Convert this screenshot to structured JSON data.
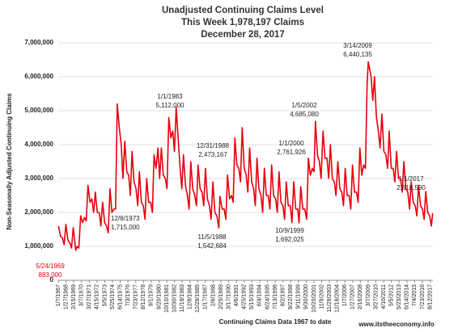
{
  "chart_data": {
    "type": "line",
    "title": "Unadjusted Continuing Claims Level",
    "subtitle": "This Week 1,978,197 Claims",
    "date": "December 28, 2017",
    "y_label": "Non-Seasonally Adjusted Continuing Claims",
    "x_label": "Continuing Claims Data 1967 to date",
    "source": "www.itstheeconomy.info",
    "grid": true,
    "xlim": [
      0,
      2660
    ],
    "xticks": [
      {
        "value": 0,
        "label": "1/7/1967"
      },
      {
        "value": 55,
        "label": "1/27/1968"
      },
      {
        "value": 110,
        "label": "2/15/1969"
      },
      {
        "value": 165,
        "label": "3/7/1970"
      },
      {
        "value": 220,
        "label": "3/27/1971"
      },
      {
        "value": 275,
        "label": "4/15/1972"
      },
      {
        "value": 330,
        "label": "5/5/1973"
      },
      {
        "value": 385,
        "label": "5/25/1974"
      },
      {
        "value": 440,
        "label": "6/14/1975"
      },
      {
        "value": 495,
        "label": "7/3/1976"
      },
      {
        "value": 550,
        "label": "7/23/1977"
      },
      {
        "value": 605,
        "label": "8/12/1978"
      },
      {
        "value": 660,
        "label": "9/1/1979"
      },
      {
        "value": 715,
        "label": "9/20/1980"
      },
      {
        "value": 770,
        "label": "10/10/1981"
      },
      {
        "value": 825,
        "label": "10/30/1982"
      },
      {
        "value": 880,
        "label": "11/19/1983"
      },
      {
        "value": 935,
        "label": "12/8/1984"
      },
      {
        "value": 990,
        "label": "12/28/1985"
      },
      {
        "value": 1045,
        "label": "1/17/1987"
      },
      {
        "value": 1100,
        "label": "2/6/1988"
      },
      {
        "value": 1155,
        "label": "2/25/1989"
      },
      {
        "value": 1210,
        "label": "3/17/1990"
      },
      {
        "value": 1265,
        "label": "4/6/1991"
      },
      {
        "value": 1320,
        "label": "4/25/1992"
      },
      {
        "value": 1375,
        "label": "5/15/1993"
      },
      {
        "value": 1430,
        "label": "6/4/1994"
      },
      {
        "value": 1485,
        "label": "6/24/1995"
      },
      {
        "value": 1540,
        "label": "7/13/1996"
      },
      {
        "value": 1595,
        "label": "8/2/1997"
      },
      {
        "value": 1650,
        "label": "8/22/1998"
      },
      {
        "value": 1705,
        "label": "9/11/1999"
      },
      {
        "value": 1760,
        "label": "9/30/2000"
      },
      {
        "value": 1815,
        "label": "10/20/2001"
      },
      {
        "value": 1870,
        "label": "11/9/2002"
      },
      {
        "value": 1925,
        "label": "11/29/2003"
      },
      {
        "value": 1980,
        "label": "12/18/2004"
      },
      {
        "value": 2035,
        "label": "1/7/2006"
      },
      {
        "value": 2090,
        "label": "1/27/2007"
      },
      {
        "value": 2145,
        "label": "2/16/2008"
      },
      {
        "value": 2200,
        "label": "3/7/2009"
      },
      {
        "value": 2255,
        "label": "3/27/2010"
      },
      {
        "value": 2310,
        "label": "4/16/2011"
      },
      {
        "value": 2365,
        "label": "5/5/2012"
      },
      {
        "value": 2420,
        "label": "5/25/2013"
      },
      {
        "value": 2475,
        "label": "6/14/2014"
      },
      {
        "value": 2530,
        "label": "7/4/2015"
      },
      {
        "value": 2585,
        "label": "7/23/2016"
      },
      {
        "value": 2640,
        "label": "8/12/2017"
      }
    ],
    "ylim": [
      0,
      7000000
    ],
    "yticks": [
      0,
      {
        "value": 1000000,
        "label": "1,000,000"
      },
      {
        "value": 2000000,
        "label": "2,000,000"
      },
      {
        "value": 3000000,
        "label": "3,000,000"
      },
      {
        "value": 4000000,
        "label": "4,000,000"
      },
      {
        "value": 5000000,
        "label": "5,000,000"
      },
      {
        "value": 6000000,
        "label": "6,000,000"
      },
      {
        "value": 7000000,
        "label": "7,000,000"
      }
    ],
    "series": [
      {
        "color": "#e8000b",
        "x": [
          2,
          16,
          30,
          42,
          54,
          68,
          82,
          94,
          106,
          124,
          134,
          146,
          159,
          173,
          187,
          199,
          211,
          225,
          239,
          251,
          263,
          277,
          291,
          303,
          315,
          329,
          343,
          355,
          367,
          381,
          395,
          407,
          419,
          433,
          447,
          459,
          472,
          486,
          500,
          512,
          524,
          538,
          552,
          564,
          576,
          590,
          604,
          616,
          628,
          642,
          656,
          668,
          680,
          694,
          708,
          720,
          732,
          746,
          760,
          772,
          785,
          799,
          813,
          825,
          837,
          851,
          865,
          877,
          889,
          903,
          917,
          929,
          941,
          955,
          969,
          981,
          993,
          1007,
          1021,
          1033,
          1045,
          1059,
          1073,
          1085,
          1098,
          1112,
          1126,
          1140,
          1148,
          1164,
          1178,
          1190,
          1202,
          1216,
          1230,
          1242,
          1254,
          1268,
          1282,
          1294,
          1306,
          1320,
          1334,
          1346,
          1359,
          1373,
          1387,
          1399,
          1411,
          1425,
          1439,
          1451,
          1463,
          1477,
          1491,
          1503,
          1515,
          1529,
          1543,
          1555,
          1567,
          1581,
          1595,
          1607,
          1619,
          1633,
          1647,
          1659,
          1672,
          1686,
          1700,
          1710,
          1722,
          1736,
          1750,
          1764,
          1776,
          1790,
          1804,
          1816,
          1826,
          1840,
          1854,
          1866,
          1880,
          1894,
          1908,
          1920,
          1932,
          1946,
          1960,
          1972,
          1985,
          1999,
          2013,
          2025,
          2037,
          2051,
          2065,
          2077,
          2089,
          2103,
          2117,
          2129,
          2141,
          2155,
          2169,
          2181,
          2193,
          2201,
          2221,
          2233,
          2245,
          2259,
          2273,
          2285,
          2298,
          2312,
          2326,
          2338,
          2350,
          2364,
          2378,
          2390,
          2402,
          2416,
          2430,
          2442,
          2454,
          2468,
          2482,
          2494,
          2506,
          2520,
          2534,
          2546,
          2558,
          2572,
          2586,
          2598,
          2609,
          2623,
          2637,
          2649,
          2658
        ],
        "values": [
          1600000,
          1300000,
          1250000,
          1050000,
          1650000,
          1200000,
          1100000,
          950000,
          1550000,
          883000,
          1000000,
          950000,
          1900000,
          1700000,
          1850000,
          1750000,
          2800000,
          2300000,
          2400000,
          2000000,
          2600000,
          2000000,
          2000000,
          1600000,
          2300000,
          1700000,
          1600000,
          1400000,
          2700000,
          2000000,
          2100000,
          2100000,
          5200000,
          4500000,
          4000000,
          3000000,
          4100000,
          3200000,
          3100000,
          2500000,
          3800000,
          2900000,
          2700000,
          2200000,
          3200000,
          2300000,
          2200000,
          1800000,
          3000000,
          2300000,
          2300000,
          2000000,
          3700000,
          3300000,
          3900000,
          3000000,
          3900000,
          3100000,
          3000000,
          2700000,
          4800000,
          4200000,
          4400000,
          3800000,
          5112000,
          4200000,
          3300000,
          2700000,
          3700000,
          2800000,
          2500000,
          2100000,
          3500000,
          2700000,
          2500000,
          2200000,
          3400000,
          2700000,
          2600000,
          2200000,
          3300000,
          2400000,
          2200000,
          1800000,
          2900000,
          2000000,
          1900000,
          1542684,
          2473167,
          2100000,
          2100000,
          1800000,
          3100000,
          2400000,
          2500000,
          2300000,
          4200000,
          3400000,
          3300000,
          2900000,
          4500000,
          3300000,
          3100000,
          2600000,
          3900000,
          2900000,
          2700000,
          2200000,
          3600000,
          2700000,
          2500000,
          2000000,
          3300000,
          2500000,
          2500000,
          2100000,
          3400000,
          2500000,
          2400000,
          2000000,
          3200000,
          2300000,
          2200000,
          1800000,
          2900000,
          2200000,
          2200000,
          1700000,
          2900000,
          2100000,
          2100000,
          1692025,
          2761926,
          2100000,
          2100000,
          1800000,
          3600000,
          3100000,
          3300000,
          3200000,
          4685080,
          3700000,
          3500000,
          3000000,
          4400000,
          3600000,
          3600000,
          3000000,
          4000000,
          3000000,
          2900000,
          2500000,
          3500000,
          2700000,
          2600000,
          2200000,
          3300000,
          2500000,
          2500000,
          2100000,
          3400000,
          2600000,
          2600000,
          2300000,
          3900000,
          3100000,
          3400000,
          3300000,
          5800000,
          6440135,
          6000000,
          5300000,
          6000000,
          4800000,
          4400000,
          3900000,
          4900000,
          3800000,
          3700000,
          3300000,
          4400000,
          3300000,
          3300000,
          2900000,
          3800000,
          3000000,
          3000000,
          2600000,
          3500000,
          2700000,
          2600000,
          2100000,
          2900000,
          2300000,
          2200000,
          1900000,
          2800000,
          2200000,
          2100000,
          1800000,
          2618590,
          2000000,
          1900000,
          1600000,
          1978197
        ]
      }
    ],
    "annotations": [
      {
        "date": "5/24/1969",
        "value": "883,000",
        "color": "#e8000b"
      },
      {
        "date": "12/8/1973",
        "value": "1,715,000"
      },
      {
        "date": "1/1/1983",
        "value": "5,112,000"
      },
      {
        "date": "12/31/1988",
        "value": "2,473,167"
      },
      {
        "date": "11/5/1988",
        "value": "1,542,684"
      },
      {
        "date": "1/1/2000",
        "value": "2,761,926"
      },
      {
        "date": "10/9/1999",
        "value": "1,692,025"
      },
      {
        "date": "1/5/2002",
        "value": "4,685,080"
      },
      {
        "date": "3/14/2009",
        "value": "6,440,135"
      },
      {
        "date": "1/1/2017",
        "value": "2,618,590"
      }
    ]
  }
}
